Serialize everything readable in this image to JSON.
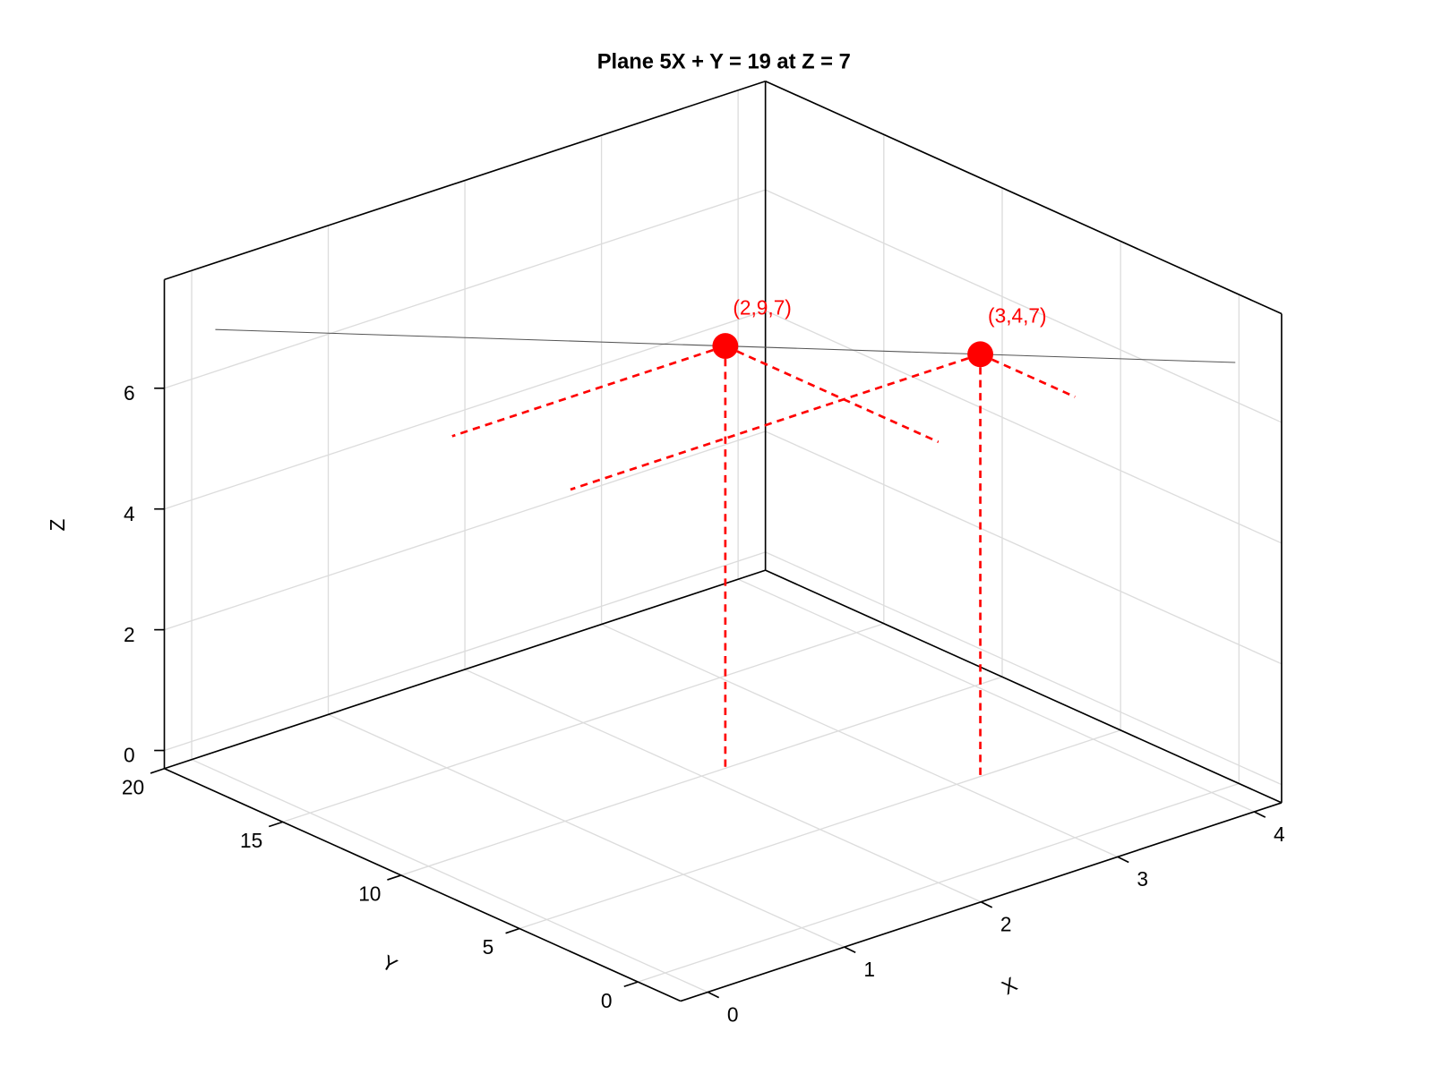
{
  "chart_data": {
    "type": "scatter3d",
    "title": "Plane 5X + Y = 19 at Z = 7",
    "xlabel": "X",
    "ylabel": "Y",
    "zlabel": "Z",
    "xlim": [
      -0.2,
      4.2
    ],
    "ylim": [
      -1.8,
      20
    ],
    "zlim": [
      -0.3,
      7.8
    ],
    "xticks": [
      0,
      1,
      2,
      3,
      4
    ],
    "yticks": [
      0,
      5,
      10,
      15,
      20
    ],
    "zticks": [
      0,
      2,
      4,
      6
    ],
    "grid": true,
    "drop_lines": true,
    "points": {
      "x": [
        2,
        3
      ],
      "y": [
        9,
        4
      ],
      "z": [
        7,
        7
      ],
      "color": "#ff0000",
      "labels": [
        "(2,9,7)",
        "(3,4,7)"
      ]
    },
    "plane_line": {
      "x": [
        0,
        4
      ],
      "y": [
        19,
        -1
      ],
      "z": [
        7,
        7
      ],
      "color": "#555555"
    }
  }
}
